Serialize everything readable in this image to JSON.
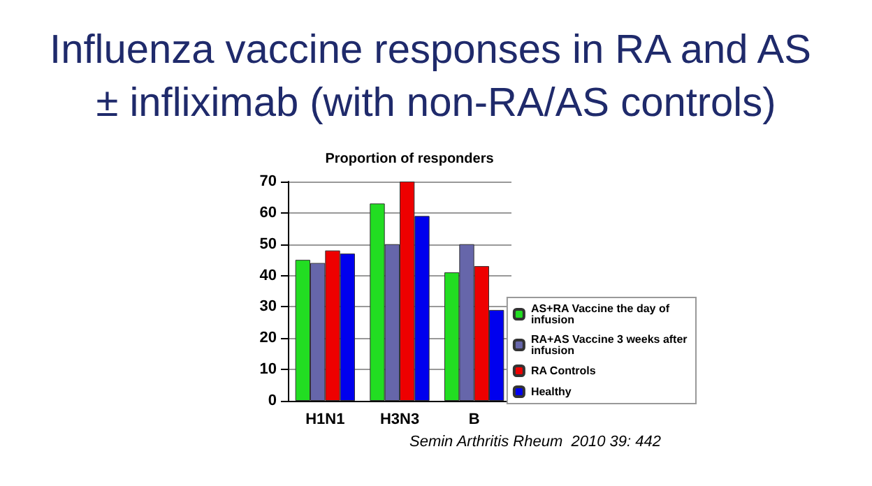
{
  "chart_data": {
    "type": "bar",
    "title": "Influenza vaccine responses in RA and AS ± infliximab (with non-RA/AS controls)",
    "subtitle": "Proportion of responders",
    "categories": [
      "H1N1",
      "H3N3",
      "B"
    ],
    "series": [
      {
        "name": "AS+RA Vaccine the day of infusion",
        "color": "#22dd22",
        "values": [
          45,
          63,
          41
        ]
      },
      {
        "name": "RA+AS Vaccine 3 weeks after infusion",
        "color": "#6666aa",
        "values": [
          44,
          50,
          50
        ]
      },
      {
        "name": "RA Controls",
        "color": "#ee0000",
        "values": [
          48,
          70,
          43
        ]
      },
      {
        "name": "Healthy",
        "color": "#0000ee",
        "values": [
          47,
          59,
          29
        ]
      }
    ],
    "ylim": [
      0,
      70
    ],
    "yticks": [
      0,
      10,
      20,
      30,
      40,
      50,
      60,
      70
    ],
    "grid": "y",
    "legend": "right",
    "annotations": [
      "Semin Arthritis Rheum  2010 39: 442"
    ]
  }
}
